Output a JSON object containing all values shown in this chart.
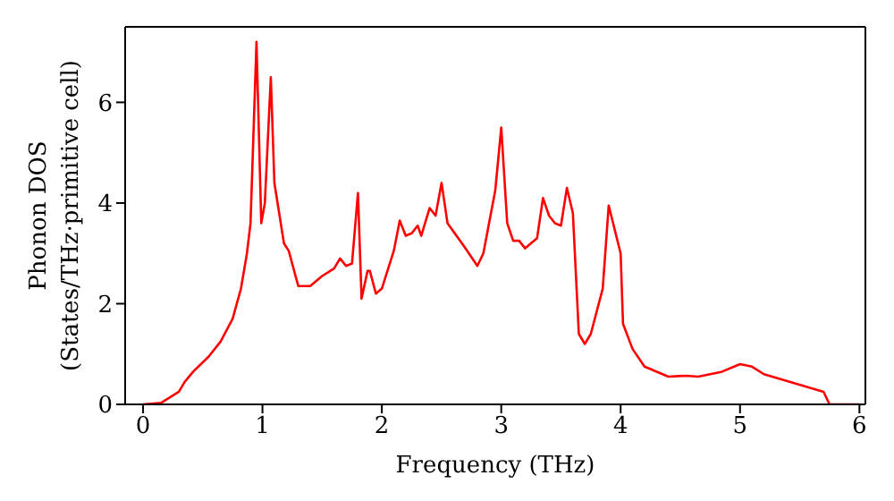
{
  "chart_data": {
    "type": "line",
    "xlabel": "Frequency (THz)",
    "ylabel": "Phonon DOS\n(States/THz·primitive cell)",
    "xlim": [
      -0.15,
      6.05
    ],
    "xticks": [
      0,
      1,
      2,
      3,
      4,
      5,
      6
    ],
    "ylim": [
      0,
      7.5
    ],
    "yticks": [
      0,
      2,
      4,
      6
    ],
    "grid": false,
    "legend": false,
    "marker": "none",
    "line_style": "solid",
    "x": [
      0,
      0.15,
      0.3,
      0.35,
      0.42,
      0.55,
      0.65,
      0.75,
      0.82,
      0.87,
      0.9,
      0.95,
      0.99,
      1.02,
      1.07,
      1.1,
      1.18,
      1.22,
      1.3,
      1.4,
      1.5,
      1.6,
      1.65,
      1.7,
      1.75,
      1.8,
      1.83,
      1.88,
      1.9,
      1.95,
      2.0,
      2.1,
      2.15,
      2.2,
      2.25,
      2.3,
      2.33,
      2.4,
      2.45,
      2.5,
      2.55,
      2.7,
      2.8,
      2.85,
      2.95,
      3.0,
      3.05,
      3.1,
      3.15,
      3.2,
      3.3,
      3.35,
      3.4,
      3.45,
      3.5,
      3.55,
      3.6,
      3.65,
      3.7,
      3.75,
      3.85,
      3.9,
      4.0,
      4.02,
      4.1,
      4.2,
      4.4,
      4.55,
      4.65,
      4.85,
      5.0,
      5.1,
      5.2,
      5.7,
      5.75,
      6.0
    ],
    "series": [
      {
        "color": "#ff0000",
        "values": [
          0,
          0.03,
          0.25,
          0.45,
          0.65,
          0.95,
          1.25,
          1.7,
          2.3,
          3.0,
          3.6,
          7.2,
          3.6,
          4.0,
          6.5,
          4.4,
          3.2,
          3.05,
          2.35,
          2.35,
          2.55,
          2.7,
          2.9,
          2.75,
          2.8,
          4.2,
          2.1,
          2.65,
          2.65,
          2.2,
          2.3,
          3.05,
          3.65,
          3.35,
          3.4,
          3.55,
          3.35,
          3.9,
          3.75,
          4.4,
          3.6,
          3.1,
          2.75,
          3.0,
          4.25,
          5.5,
          3.6,
          3.25,
          3.25,
          3.1,
          3.3,
          4.1,
          3.75,
          3.6,
          3.55,
          4.3,
          3.8,
          1.4,
          1.2,
          1.4,
          2.3,
          3.95,
          3.0,
          1.6,
          1.1,
          0.75,
          0.55,
          0.57,
          0.55,
          0.65,
          0.8,
          0.75,
          0.6,
          0.25,
          0,
          0
        ]
      }
    ]
  }
}
